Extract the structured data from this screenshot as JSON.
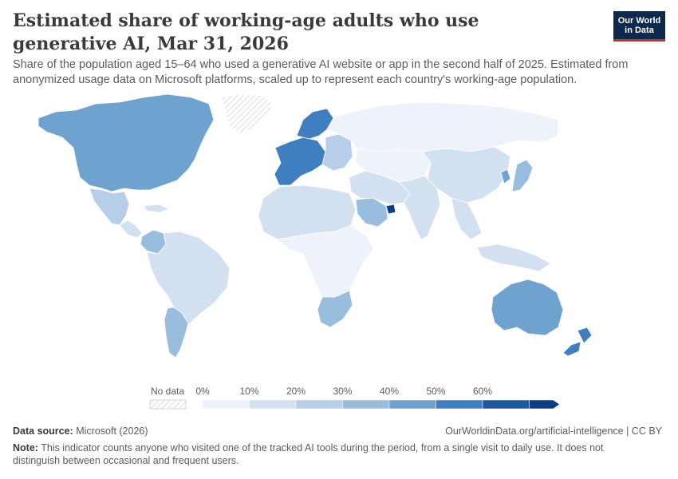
{
  "title": "Estimated share of working-age adults who use generative AI, Mar 31, 2026",
  "subtitle": "Share of the population aged 15–64 who used a generative AI website or app in the second half of 2025. Estimated from anonymized usage data on Microsoft platforms, scaled up to represent each country's working-age population.",
  "logo": {
    "line1": "Our World",
    "line2": "in Data"
  },
  "legend": {
    "no_data_label": "No data",
    "ticks": [
      "0%",
      "10%",
      "20%",
      "30%",
      "40%",
      "50%",
      "60%"
    ],
    "bin_colors": [
      "#eef3fb",
      "#d3e0f0",
      "#b6cee7",
      "#99bedd",
      "#6ea3d0",
      "#3f7fbf",
      "#1e5aa0",
      "#0b3e85"
    ]
  },
  "regions": [
    {
      "name": "North America",
      "color": "#6ea3d0"
    },
    {
      "name": "Greenland",
      "color": "no-data"
    },
    {
      "name": "Mexico",
      "color": "#b6cee7"
    },
    {
      "name": "Central America",
      "color": "#d3e0f0"
    },
    {
      "name": "Colombia",
      "color": "#99bedd"
    },
    {
      "name": "South America",
      "color": "#d3e0f0"
    },
    {
      "name": "Argentina",
      "color": "#99bedd"
    },
    {
      "name": "Western Europe",
      "color": "#3f7fbf"
    },
    {
      "name": "Nordics",
      "color": "#3f7fbf"
    },
    {
      "name": "Eastern Europe",
      "color": "#b6cee7"
    },
    {
      "name": "Russia",
      "color": "#eef3fb"
    },
    {
      "name": "North Africa",
      "color": "#d3e0f0"
    },
    {
      "name": "Sub-Saharan Africa",
      "color": "#eef3fb"
    },
    {
      "name": "Southern Africa",
      "color": "#99bedd"
    },
    {
      "name": "Middle East",
      "color": "#d3e0f0"
    },
    {
      "name": "Saudi Arabia",
      "color": "#99bedd"
    },
    {
      "name": "United Arab Emirates",
      "color": "#0b3e85"
    },
    {
      "name": "Central Asia",
      "color": "#eef3fb"
    },
    {
      "name": "China",
      "color": "#d3e0f0"
    },
    {
      "name": "India",
      "color": "#d3e0f0"
    },
    {
      "name": "Southeast Asia",
      "color": "#d3e0f0"
    },
    {
      "name": "Japan",
      "color": "#99bedd"
    },
    {
      "name": "Korea",
      "color": "#6ea3d0"
    },
    {
      "name": "Australia",
      "color": "#6ea3d0"
    },
    {
      "name": "New Zealand",
      "color": "#3f7fbf"
    }
  ],
  "footer": {
    "source_label": "Data source:",
    "source_value": "Microsoft (2026)",
    "url": "OurWorldinData.org/artificial-intelligence | CC BY",
    "note_label": "Note:",
    "note_text": "This indicator counts anyone who visited one of the tracked AI tools during the period, from a single visit to daily use. It does not distinguish between occasional and frequent users."
  }
}
